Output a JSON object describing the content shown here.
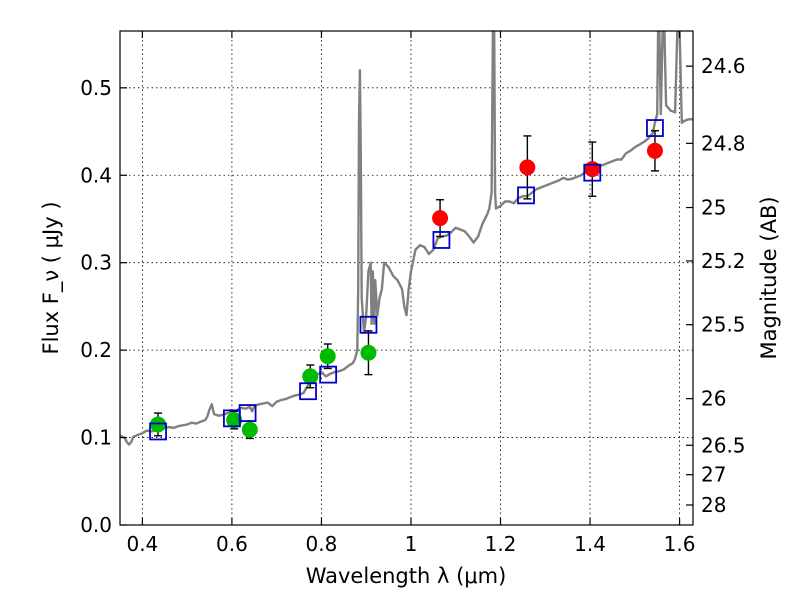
{
  "chart_data": {
    "type": "scatter",
    "xlabel": "Wavelength  λ (μm)",
    "ylabel": "Flux  F_ν  ( μJy )",
    "ylabel_right": "Magnitude (AB)",
    "xlim": [
      0.35,
      1.63
    ],
    "ylim": [
      0.0,
      0.565
    ],
    "xticks": [
      0.4,
      0.6,
      0.8,
      1.0,
      1.2,
      1.4,
      1.6
    ],
    "xtick_labels": [
      "0.4",
      "0.6",
      "0.8",
      "1",
      "1.2",
      "1.4",
      "1.6"
    ],
    "yticks": [
      0.0,
      0.1,
      0.2,
      0.3,
      0.4,
      0.5
    ],
    "ytick_labels": [
      "0.0",
      "0.1",
      "0.2",
      "0.3",
      "0.4",
      "0.5"
    ],
    "right_ticks": [
      {
        "label": "24.6",
        "flux": 0.5248
      },
      {
        "label": "24.8",
        "flux": 0.4365
      },
      {
        "label": "25",
        "flux": 0.3631
      },
      {
        "label": "25.2",
        "flux": 0.302
      },
      {
        "label": "25.5",
        "flux": 0.2291
      },
      {
        "label": "26",
        "flux": 0.1445
      },
      {
        "label": "26.5",
        "flux": 0.0912
      },
      {
        "label": "27",
        "flux": 0.0575
      },
      {
        "label": "28",
        "flux": 0.0229
      }
    ],
    "grid": true,
    "series": [
      {
        "marker": "circle",
        "color": "#00bb00",
        "points": [
          {
            "x": 0.435,
            "y": 0.115,
            "err": 0.013
          },
          {
            "x": 0.605,
            "y": 0.12,
            "err": 0.01
          },
          {
            "x": 0.64,
            "y": 0.109,
            "err": 0.01
          },
          {
            "x": 0.775,
            "y": 0.17,
            "err": 0.013
          },
          {
            "x": 0.814,
            "y": 0.193,
            "err": 0.014
          },
          {
            "x": 0.905,
            "y": 0.197,
            "err": 0.025
          }
        ]
      },
      {
        "marker": "circle",
        "color": "#ff0000",
        "points": [
          {
            "x": 1.065,
            "y": 0.351,
            "err": 0.021
          },
          {
            "x": 1.26,
            "y": 0.409,
            "err": 0.036
          },
          {
            "x": 1.405,
            "y": 0.407,
            "err": 0.031
          },
          {
            "x": 1.545,
            "y": 0.428,
            "err": 0.023
          }
        ]
      },
      {
        "marker": "open-square",
        "color": "#0000cc",
        "points": [
          {
            "x": 0.435,
            "y": 0.107
          },
          {
            "x": 0.6,
            "y": 0.122
          },
          {
            "x": 0.635,
            "y": 0.128
          },
          {
            "x": 0.77,
            "y": 0.153
          },
          {
            "x": 0.815,
            "y": 0.172
          },
          {
            "x": 0.905,
            "y": 0.229
          },
          {
            "x": 1.068,
            "y": 0.326
          },
          {
            "x": 1.257,
            "y": 0.377
          },
          {
            "x": 1.405,
            "y": 0.403
          },
          {
            "x": 1.545,
            "y": 0.454
          }
        ]
      },
      {
        "type": "line",
        "color": "#808080",
        "points": [
          [
            0.35,
            0.102
          ],
          [
            0.36,
            0.1
          ],
          [
            0.365,
            0.095
          ],
          [
            0.37,
            0.092
          ],
          [
            0.375,
            0.095
          ],
          [
            0.38,
            0.101
          ],
          [
            0.39,
            0.103
          ],
          [
            0.4,
            0.105
          ],
          [
            0.41,
            0.108
          ],
          [
            0.42,
            0.107
          ],
          [
            0.43,
            0.108
          ],
          [
            0.44,
            0.11
          ],
          [
            0.45,
            0.111
          ],
          [
            0.46,
            0.112
          ],
          [
            0.47,
            0.111
          ],
          [
            0.48,
            0.113
          ],
          [
            0.49,
            0.114
          ],
          [
            0.5,
            0.115
          ],
          [
            0.51,
            0.117
          ],
          [
            0.52,
            0.116
          ],
          [
            0.53,
            0.118
          ],
          [
            0.54,
            0.12
          ],
          [
            0.545,
            0.124
          ],
          [
            0.55,
            0.132
          ],
          [
            0.555,
            0.138
          ],
          [
            0.56,
            0.127
          ],
          [
            0.57,
            0.125
          ],
          [
            0.58,
            0.126
          ],
          [
            0.59,
            0.128
          ],
          [
            0.6,
            0.13
          ],
          [
            0.61,
            0.131
          ],
          [
            0.62,
            0.134
          ],
          [
            0.63,
            0.133
          ],
          [
            0.64,
            0.135
          ],
          [
            0.645,
            0.13
          ],
          [
            0.65,
            0.136
          ],
          [
            0.66,
            0.138
          ],
          [
            0.67,
            0.139
          ],
          [
            0.68,
            0.14
          ],
          [
            0.69,
            0.136
          ],
          [
            0.7,
            0.141
          ],
          [
            0.71,
            0.143
          ],
          [
            0.72,
            0.144
          ],
          [
            0.73,
            0.146
          ],
          [
            0.74,
            0.148
          ],
          [
            0.75,
            0.149
          ],
          [
            0.76,
            0.151
          ],
          [
            0.77,
            0.16
          ],
          [
            0.78,
            0.164
          ],
          [
            0.79,
            0.172
          ],
          [
            0.8,
            0.175
          ],
          [
            0.81,
            0.17
          ],
          [
            0.82,
            0.173
          ],
          [
            0.83,
            0.175
          ],
          [
            0.84,
            0.176
          ],
          [
            0.85,
            0.178
          ],
          [
            0.86,
            0.182
          ],
          [
            0.87,
            0.185
          ],
          [
            0.875,
            0.19
          ],
          [
            0.88,
            0.2
          ],
          [
            0.882,
            0.27
          ],
          [
            0.884,
            0.46
          ],
          [
            0.886,
            0.52
          ],
          [
            0.888,
            0.42
          ],
          [
            0.89,
            0.26
          ],
          [
            0.895,
            0.22
          ],
          [
            0.9,
            0.24
          ],
          [
            0.905,
            0.29
          ],
          [
            0.91,
            0.3
          ],
          [
            0.912,
            0.23
          ],
          [
            0.915,
            0.29
          ],
          [
            0.918,
            0.23
          ],
          [
            0.92,
            0.28
          ],
          [
            0.925,
            0.24
          ],
          [
            0.93,
            0.26
          ],
          [
            0.935,
            0.27
          ],
          [
            0.94,
            0.3
          ],
          [
            0.95,
            0.295
          ],
          [
            0.96,
            0.285
          ],
          [
            0.97,
            0.28
          ],
          [
            0.98,
            0.27
          ],
          [
            0.985,
            0.25
          ],
          [
            0.99,
            0.24
          ],
          [
            0.995,
            0.27
          ],
          [
            1.0,
            0.29
          ],
          [
            1.01,
            0.315
          ],
          [
            1.02,
            0.32
          ],
          [
            1.03,
            0.318
          ],
          [
            1.04,
            0.31
          ],
          [
            1.05,
            0.315
          ],
          [
            1.06,
            0.328
          ],
          [
            1.07,
            0.33
          ],
          [
            1.08,
            0.331
          ],
          [
            1.09,
            0.335
          ],
          [
            1.1,
            0.34
          ],
          [
            1.11,
            0.338
          ],
          [
            1.12,
            0.336
          ],
          [
            1.13,
            0.33
          ],
          [
            1.14,
            0.323
          ],
          [
            1.15,
            0.33
          ],
          [
            1.16,
            0.345
          ],
          [
            1.17,
            0.355
          ],
          [
            1.175,
            0.362
          ],
          [
            1.18,
            0.38
          ],
          [
            1.183,
            0.565
          ],
          [
            1.186,
            0.565
          ],
          [
            1.188,
            0.38
          ],
          [
            1.19,
            0.362
          ],
          [
            1.2,
            0.365
          ],
          [
            1.21,
            0.37
          ],
          [
            1.22,
            0.37
          ],
          [
            1.23,
            0.368
          ],
          [
            1.24,
            0.374
          ],
          [
            1.25,
            0.376
          ],
          [
            1.26,
            0.376
          ],
          [
            1.27,
            0.38
          ],
          [
            1.28,
            0.384
          ],
          [
            1.29,
            0.386
          ],
          [
            1.3,
            0.388
          ],
          [
            1.31,
            0.39
          ],
          [
            1.32,
            0.392
          ],
          [
            1.33,
            0.394
          ],
          [
            1.34,
            0.397
          ],
          [
            1.35,
            0.395
          ],
          [
            1.36,
            0.396
          ],
          [
            1.37,
            0.398
          ],
          [
            1.38,
            0.4
          ],
          [
            1.39,
            0.404
          ],
          [
            1.4,
            0.406
          ],
          [
            1.41,
            0.408
          ],
          [
            1.42,
            0.41
          ],
          [
            1.43,
            0.412
          ],
          [
            1.44,
            0.414
          ],
          [
            1.45,
            0.416
          ],
          [
            1.46,
            0.418
          ],
          [
            1.47,
            0.418
          ],
          [
            1.48,
            0.425
          ],
          [
            1.49,
            0.428
          ],
          [
            1.5,
            0.432
          ],
          [
            1.51,
            0.435
          ],
          [
            1.52,
            0.438
          ],
          [
            1.53,
            0.442
          ],
          [
            1.54,
            0.448
          ],
          [
            1.545,
            0.46
          ],
          [
            1.55,
            0.47
          ],
          [
            1.552,
            0.565
          ],
          [
            1.555,
            0.565
          ],
          [
            1.558,
            0.47
          ],
          [
            1.562,
            0.565
          ],
          [
            1.566,
            0.565
          ],
          [
            1.57,
            0.48
          ],
          [
            1.58,
            0.474
          ],
          [
            1.59,
            0.472
          ],
          [
            1.595,
            0.565
          ],
          [
            1.6,
            0.565
          ],
          [
            1.605,
            0.46
          ],
          [
            1.61,
            0.462
          ],
          [
            1.62,
            0.464
          ],
          [
            1.63,
            0.464
          ]
        ]
      }
    ]
  }
}
